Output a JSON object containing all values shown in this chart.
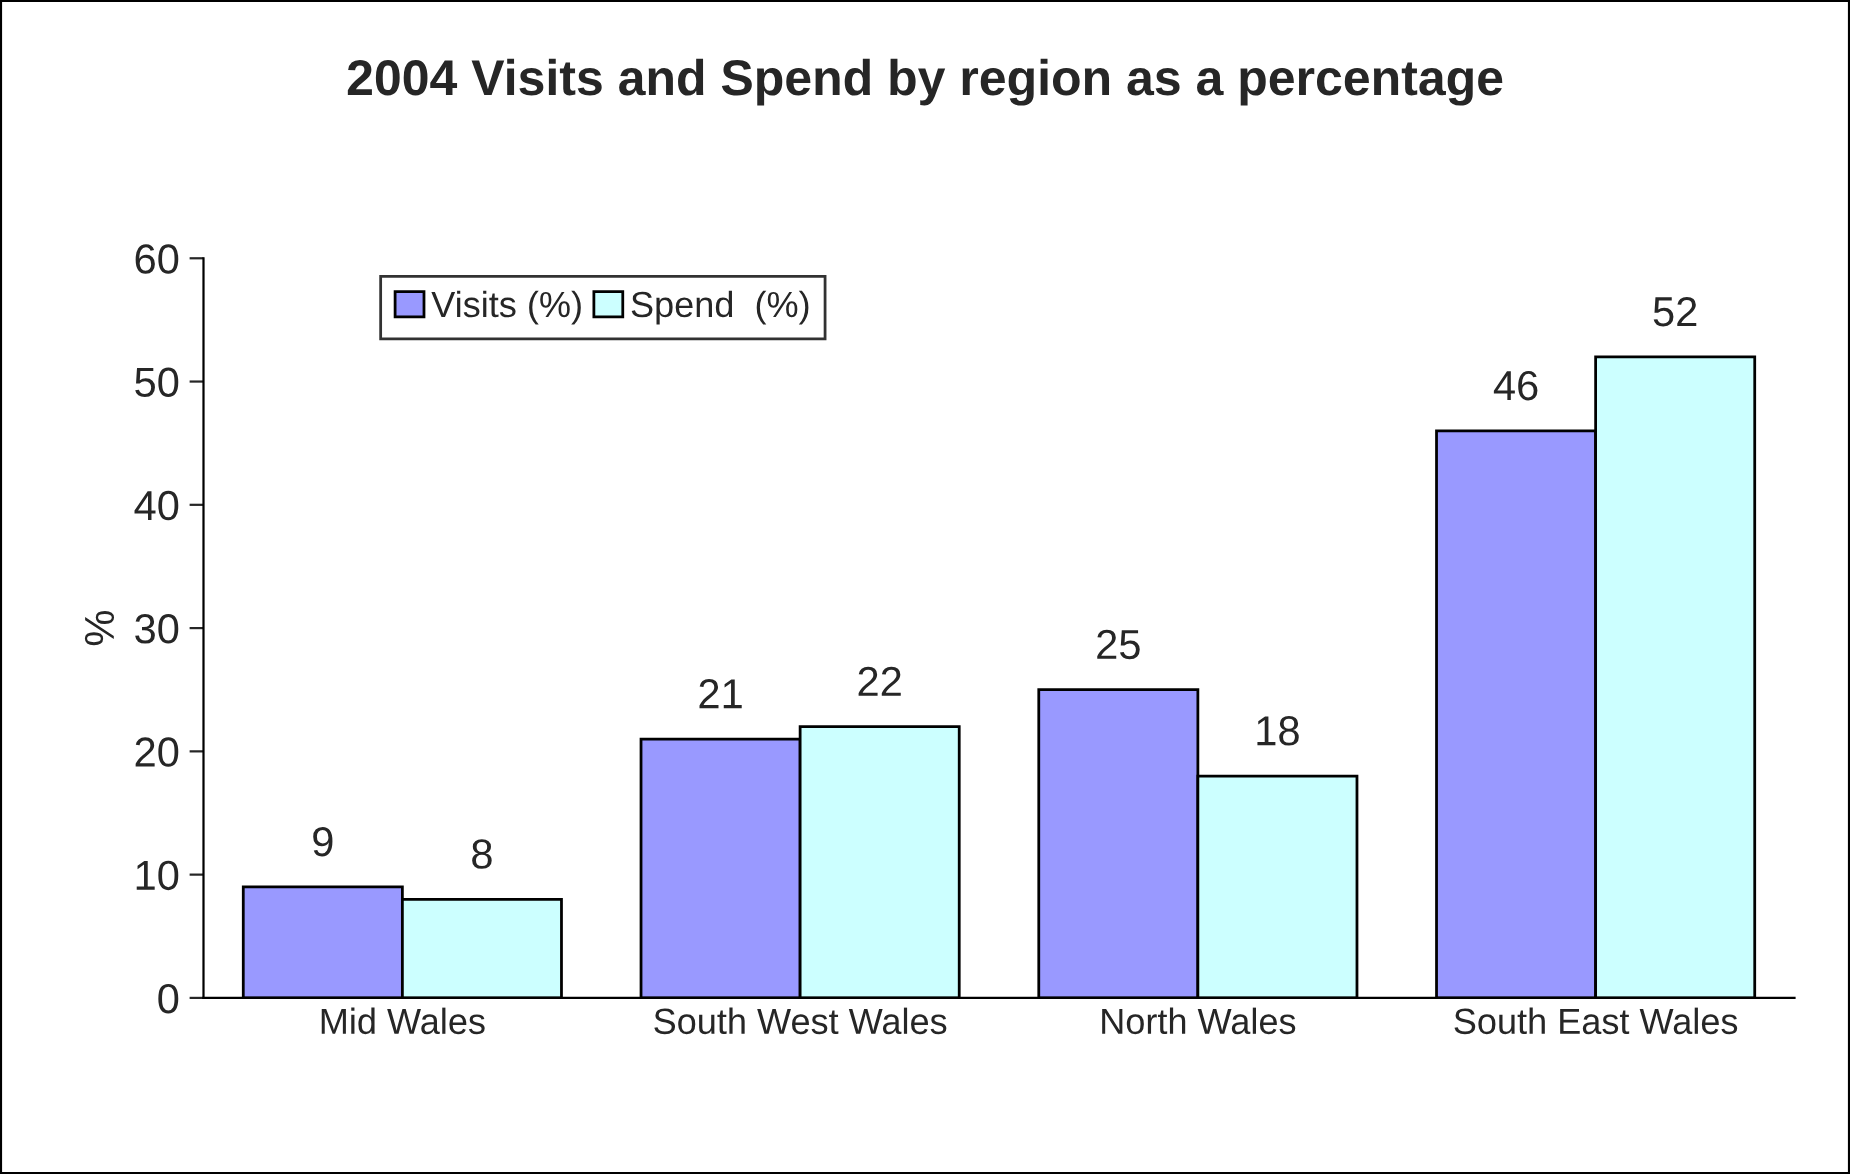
{
  "chart_data": {
    "type": "bar",
    "title": "2004 Visits and Spend by region as a percentage",
    "ylabel": "%",
    "categories": [
      "Mid Wales",
      "South West Wales",
      "North Wales",
      "South East Wales"
    ],
    "series": [
      {
        "name": "Visits (%)",
        "color": "#9999ff",
        "values": [
          9,
          21,
          25,
          46
        ]
      },
      {
        "name": "Spend  (%)",
        "color": "#ccffff",
        "values": [
          8,
          22,
          18,
          52
        ]
      }
    ],
    "ylim": [
      0,
      60
    ],
    "yticks": [
      0,
      10,
      20,
      30,
      40,
      50,
      60
    ],
    "grid": false,
    "legend": "top left",
    "data_labels": true
  }
}
